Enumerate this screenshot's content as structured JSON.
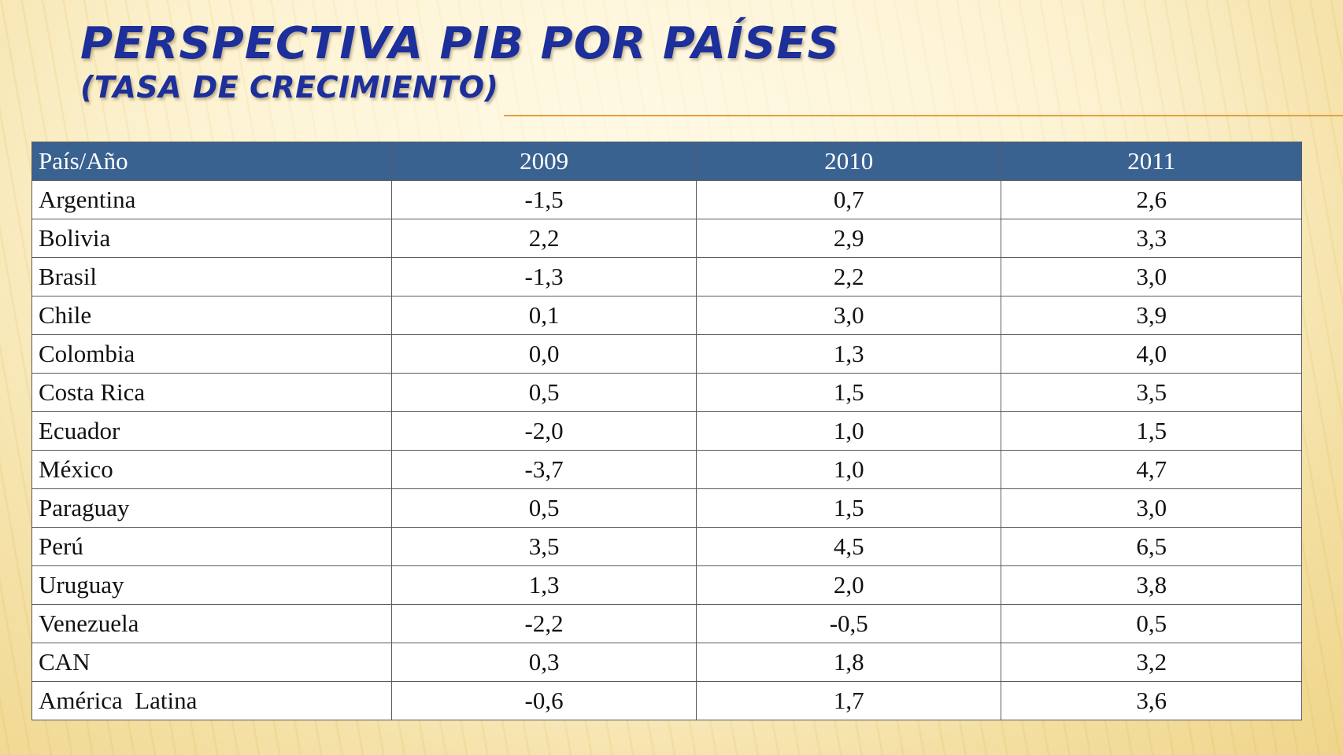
{
  "slide": {
    "title_line1": "Perspectiva PIB por países",
    "title_line2": "(Tasa de crecimiento)"
  },
  "table": {
    "headers": [
      "País/Año",
      "2009",
      "2010",
      "2011"
    ],
    "rows": [
      {
        "country": "Argentina",
        "v2009": "-1,5",
        "v2010": "0,7",
        "v2011": "2,6"
      },
      {
        "country": "Bolivia",
        "v2009": "2,2",
        "v2010": "2,9",
        "v2011": "3,3"
      },
      {
        "country": "Brasil",
        "v2009": "-1,3",
        "v2010": "2,2",
        "v2011": "3,0"
      },
      {
        "country": "Chile",
        "v2009": "0,1",
        "v2010": "3,0",
        "v2011": "3,9"
      },
      {
        "country": "Colombia",
        "v2009": "0,0",
        "v2010": "1,3",
        "v2011": "4,0"
      },
      {
        "country": "Costa Rica",
        "v2009": "0,5",
        "v2010": "1,5",
        "v2011": "3,5"
      },
      {
        "country": "Ecuador",
        "v2009": "-2,0",
        "v2010": "1,0",
        "v2011": "1,5"
      },
      {
        "country": "México",
        "v2009": "-3,7",
        "v2010": "1,0",
        "v2011": "4,7"
      },
      {
        "country": "Paraguay",
        "v2009": "0,5",
        "v2010": "1,5",
        "v2011": "3,0"
      },
      {
        "country": "Perú",
        "v2009": "3,5",
        "v2010": "4,5",
        "v2011": "6,5"
      },
      {
        "country": "Uruguay",
        "v2009": "1,3",
        "v2010": "2,0",
        "v2011": "3,8"
      },
      {
        "country": "Venezuela",
        "v2009": "-2,2",
        "v2010": "-0,5",
        "v2011": "0,5"
      },
      {
        "country": "CAN",
        "v2009": "0,3",
        "v2010": "1,8",
        "v2011": "3,2"
      },
      {
        "country": "América  Latina",
        "v2009": "-0,6",
        "v2010": "1,7",
        "v2011": "3,6"
      }
    ]
  },
  "colors": {
    "title": "#1c2f9a",
    "header_bg": "#3a6291",
    "rule": "#e3a040"
  }
}
